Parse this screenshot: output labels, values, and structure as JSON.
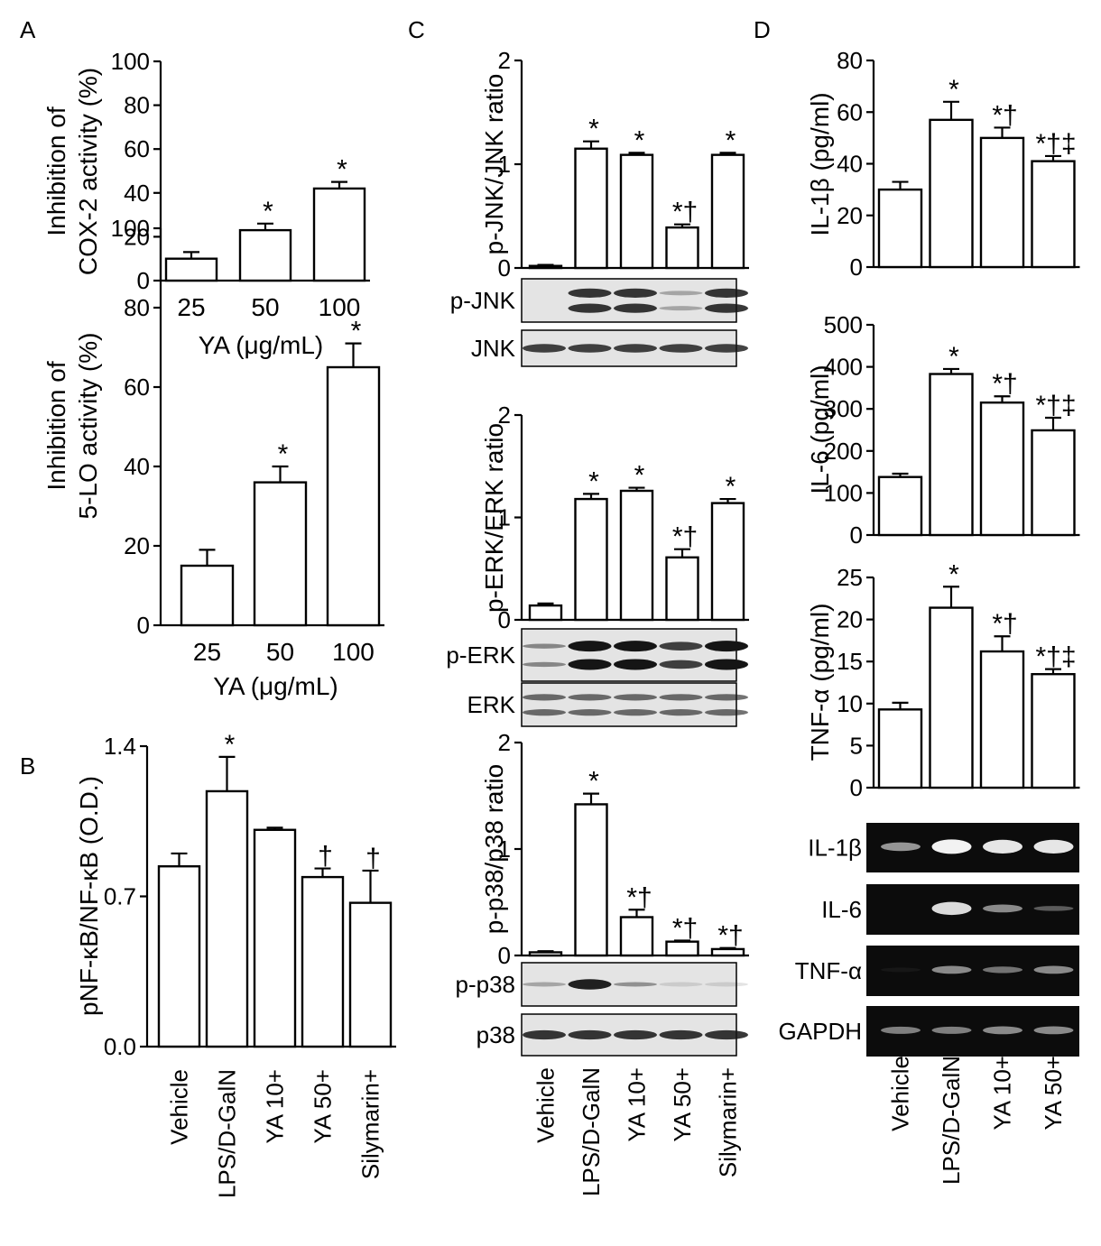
{
  "chart_data": [
    {
      "id": "A1",
      "type": "bar",
      "panel_label": "A",
      "ylabel_lines": [
        "Inhibition of",
        "COX-2 activity (%)"
      ],
      "xlabel": "YA (μg/mL)",
      "categories": [
        "25",
        "50",
        "100"
      ],
      "values": [
        10,
        23,
        42
      ],
      "errors": [
        3,
        3,
        3
      ],
      "annotations": [
        "",
        "*",
        "*"
      ],
      "ylim": [
        0,
        100
      ],
      "yticks": [
        "0",
        "20",
        "40",
        "60",
        "80",
        "100"
      ]
    },
    {
      "id": "A2",
      "type": "bar",
      "ylabel_lines": [
        "Inhibition of",
        "5-LO activity (%)"
      ],
      "xlabel": "YA (μg/mL)",
      "categories": [
        "25",
        "50",
        "100"
      ],
      "values": [
        15,
        36,
        65
      ],
      "errors": [
        4,
        4,
        6
      ],
      "annotations": [
        "",
        "*",
        "*"
      ],
      "ylim": [
        0,
        100
      ],
      "yticks": [
        "0",
        "20",
        "40",
        "60",
        "80",
        "100"
      ]
    },
    {
      "id": "B",
      "type": "bar",
      "panel_label": "B",
      "ylabel_lines": [
        "pNF-κB/NF-κB (O.D.)"
      ],
      "categories": [
        "Vehicle",
        "LPS/D-GalN",
        "YA 10+",
        "YA 50+",
        "Silymarin+"
      ],
      "values": [
        0.84,
        1.19,
        1.01,
        0.79,
        0.67
      ],
      "errors": [
        0.06,
        0.16,
        0.01,
        0.04,
        0.15
      ],
      "annotations": [
        "",
        "*",
        "",
        "†",
        "†"
      ],
      "ylim": [
        0,
        1.4
      ],
      "yticks": [
        "0.0",
        "0.7",
        "1.4"
      ]
    },
    {
      "id": "C1",
      "type": "bar",
      "panel_label": "C",
      "ylabel_lines": [
        "p-JNK/JNK ratio"
      ],
      "categories": [
        "Vehicle",
        "LPS/D-GalN",
        "YA 10+",
        "YA 50+",
        "Silymarin+"
      ],
      "values": [
        0.02,
        1.15,
        1.09,
        0.39,
        1.09
      ],
      "errors": [
        0.01,
        0.07,
        0.02,
        0.03,
        0.02
      ],
      "annotations": [
        "",
        "*",
        "*",
        "*†",
        "*"
      ],
      "ylim": [
        0,
        2
      ],
      "yticks": [
        "0",
        "1",
        "2"
      ]
    },
    {
      "id": "C2",
      "type": "bar",
      "ylabel_lines": [
        "p-ERK/ERK ratio"
      ],
      "categories": [
        "Vehicle",
        "LPS/D-GalN",
        "YA 10+",
        "YA 50+",
        "Silymarin+"
      ],
      "values": [
        0.14,
        1.18,
        1.26,
        0.61,
        1.14
      ],
      "errors": [
        0.02,
        0.05,
        0.03,
        0.08,
        0.04
      ],
      "annotations": [
        "",
        "*",
        "*",
        "*†",
        "*"
      ],
      "ylim": [
        0,
        2
      ],
      "yticks": [
        "0",
        "1",
        "2"
      ]
    },
    {
      "id": "C3",
      "type": "bar",
      "ylabel_lines": [
        "p-p38/p38 ratio"
      ],
      "categories": [
        "Vehicle",
        "LPS/D-GalN",
        "YA 10+",
        "YA 50+",
        "Silymarin+"
      ],
      "values": [
        0.03,
        1.42,
        0.36,
        0.13,
        0.06
      ],
      "errors": [
        0.01,
        0.1,
        0.07,
        0.01,
        0.01
      ],
      "annotations": [
        "",
        "*",
        "*†",
        "*†",
        "*†"
      ],
      "ylim": [
        0,
        2
      ],
      "yticks": [
        "0",
        "1",
        "2"
      ]
    },
    {
      "id": "D1",
      "type": "bar",
      "panel_label": "D",
      "ylabel_lines": [
        "IL-1β (pg/ml)"
      ],
      "categories": [
        "Vehicle",
        "LPS/D-GalN",
        "YA 10+",
        "YA 50+"
      ],
      "values": [
        30,
        57,
        50,
        41
      ],
      "errors": [
        3,
        7,
        4,
        2
      ],
      "annotations": [
        "",
        "*",
        "*†",
        "*†‡"
      ],
      "ylim": [
        0,
        80
      ],
      "yticks": [
        "0",
        "20",
        "40",
        "60",
        "80"
      ]
    },
    {
      "id": "D2",
      "type": "bar",
      "ylabel_lines": [
        "IL-6 (pg/ml)"
      ],
      "categories": [
        "Vehicle",
        "LPS/D-GalN",
        "YA 10+",
        "YA 50+"
      ],
      "values": [
        138,
        383,
        315,
        249
      ],
      "errors": [
        8,
        12,
        15,
        30
      ],
      "annotations": [
        "",
        "*",
        "*†",
        "*†‡"
      ],
      "ylim": [
        0,
        500
      ],
      "yticks": [
        "0",
        "100",
        "200",
        "300",
        "400",
        "500"
      ]
    },
    {
      "id": "D3",
      "type": "bar",
      "ylabel_lines": [
        "TNF-α (pg/ml)"
      ],
      "categories": [
        "Vehicle",
        "LPS/D-GalN",
        "YA 10+",
        "YA 50+"
      ],
      "values": [
        9.3,
        21.4,
        16.2,
        13.5
      ],
      "errors": [
        0.8,
        2.5,
        1.8,
        0.6
      ],
      "annotations": [
        "",
        "*",
        "*†",
        "*†‡"
      ],
      "ylim": [
        0,
        25
      ],
      "yticks": [
        "0",
        "5",
        "10",
        "15",
        "20",
        "25"
      ]
    }
  ],
  "blots": {
    "C": [
      {
        "label": "p-JNK",
        "bands": [
          0.0,
          0.85,
          0.85,
          0.3,
          0.85
        ],
        "double": true
      },
      {
        "label": "JNK",
        "bands": [
          0.8,
          0.8,
          0.8,
          0.8,
          0.8
        ],
        "double": false
      },
      {
        "label": "p-ERK",
        "bands": [
          0.45,
          1.0,
          1.0,
          0.8,
          1.0
        ],
        "double": true
      },
      {
        "label": "ERK",
        "bands": [
          0.6,
          0.6,
          0.6,
          0.6,
          0.6
        ],
        "double": true
      },
      {
        "label": "p-p38",
        "bands": [
          0.3,
          0.95,
          0.4,
          0.12,
          0.12
        ],
        "double": false
      },
      {
        "label": "p38",
        "bands": [
          0.85,
          0.85,
          0.85,
          0.85,
          0.85
        ],
        "double": false
      }
    ],
    "D": [
      {
        "label": "IL-1β",
        "bands": [
          0.6,
          1.0,
          0.95,
          0.95
        ]
      },
      {
        "label": "IL-6",
        "bands": [
          0.0,
          0.9,
          0.55,
          0.35
        ]
      },
      {
        "label": "TNF-α",
        "bands": [
          0.05,
          0.55,
          0.45,
          0.55
        ]
      },
      {
        "label": "GAPDH",
        "bands": [
          0.5,
          0.5,
          0.55,
          0.55
        ]
      }
    ]
  },
  "colors": {
    "bar_fill": "#ffffff",
    "bar_stroke": "#000000",
    "gel_background": "#0c0c0c",
    "gel_band": "#f2f2f2",
    "blot_background": "#e4e4e4",
    "blot_band": "#151515"
  }
}
